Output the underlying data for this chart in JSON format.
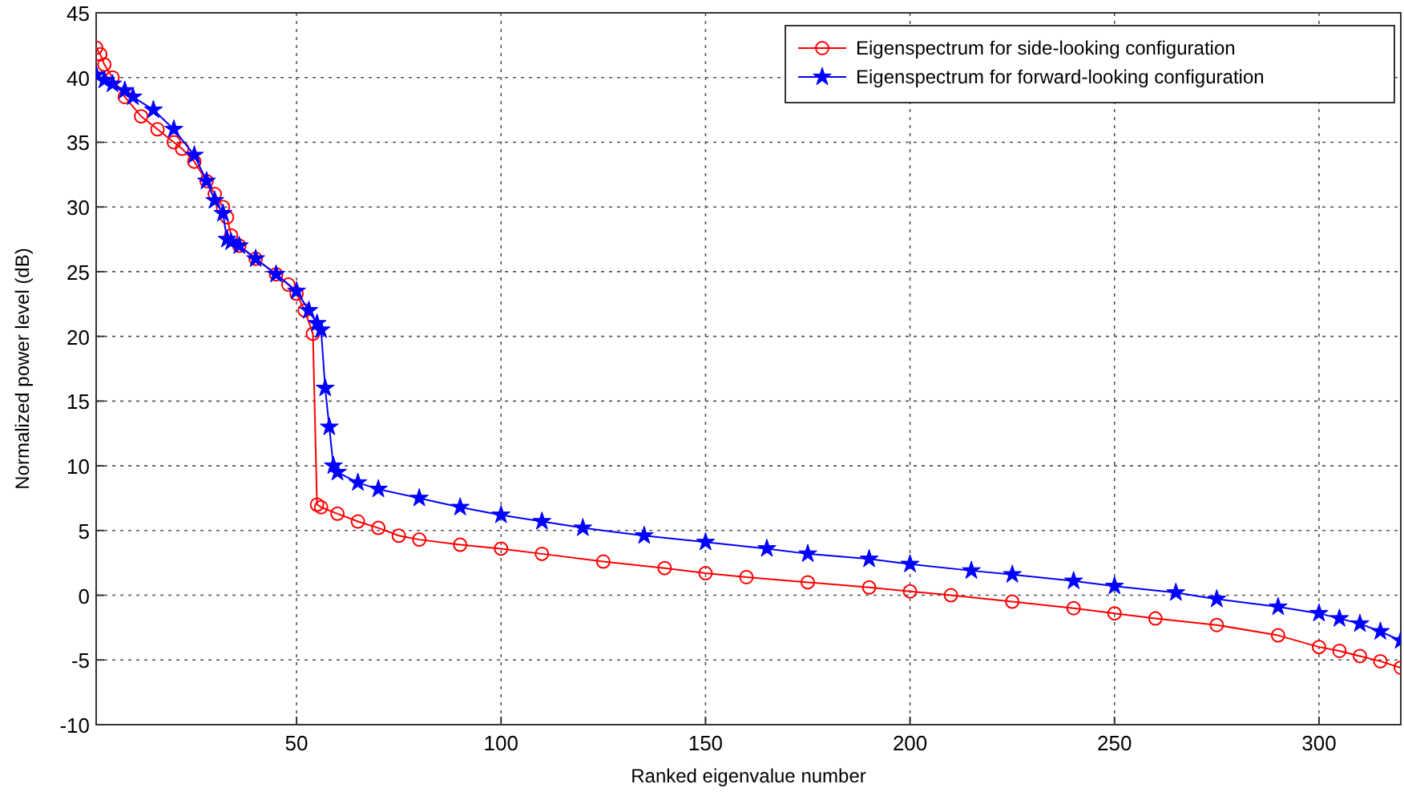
{
  "chart_data": {
    "type": "line",
    "xlabel": "Ranked eigenvalue number",
    "ylabel": "Normalized power level (dB)",
    "xlim": [
      1,
      320
    ],
    "ylim": [
      -10,
      45
    ],
    "xticks": [
      50,
      100,
      150,
      200,
      250,
      300
    ],
    "yticks": [
      -10,
      -5,
      0,
      5,
      10,
      15,
      20,
      25,
      30,
      35,
      40,
      45
    ],
    "grid": true,
    "legend": "top right",
    "line_style": "solid",
    "series": [
      {
        "name": "Eigenspectrum for side-looking configuration",
        "color": "#ff0000",
        "marker": "circle",
        "x": [
          1,
          2,
          3,
          5,
          8,
          12,
          16,
          20,
          22,
          25,
          28,
          30,
          32,
          33,
          34,
          36,
          40,
          45,
          48,
          50,
          52,
          54,
          55,
          56,
          60,
          65,
          70,
          75,
          80,
          90,
          100,
          110,
          125,
          140,
          150,
          160,
          175,
          190,
          200,
          210,
          225,
          240,
          250,
          260,
          275,
          290,
          300,
          305,
          310,
          315,
          320
        ],
        "values": [
          42.3,
          41.8,
          41,
          40,
          38.5,
          37,
          36,
          35,
          34.5,
          33.5,
          32,
          31,
          30,
          29.2,
          27.8,
          27,
          26,
          24.8,
          24,
          23.3,
          22,
          20.2,
          7,
          6.8,
          6.3,
          5.7,
          5.2,
          4.6,
          4.3,
          3.9,
          3.6,
          3.2,
          2.6,
          2.1,
          1.7,
          1.4,
          1,
          0.6,
          0.3,
          0,
          -0.5,
          -1,
          -1.4,
          -1.8,
          -2.3,
          -3.1,
          -4,
          -4.3,
          -4.7,
          -5.1,
          -5.6
        ]
      },
      {
        "name": "Eigenspectrum for forward-looking configuration",
        "color": "#0000ff",
        "marker": "star",
        "x": [
          1,
          3,
          5,
          8,
          10,
          15,
          20,
          25,
          28,
          30,
          32,
          33,
          34,
          36,
          40,
          45,
          50,
          53,
          55,
          56,
          57,
          58,
          59,
          60,
          65,
          70,
          80,
          90,
          100,
          110,
          120,
          135,
          150,
          165,
          175,
          190,
          200,
          215,
          225,
          240,
          250,
          265,
          275,
          290,
          300,
          305,
          310,
          315,
          320
        ],
        "values": [
          40.2,
          39.8,
          39.5,
          39,
          38.5,
          37.5,
          36,
          34,
          32,
          30.5,
          29.5,
          27.5,
          27.3,
          27,
          26,
          24.8,
          23.5,
          22,
          21,
          20.5,
          16,
          13,
          10,
          9.5,
          8.7,
          8.2,
          7.5,
          6.8,
          6.2,
          5.7,
          5.2,
          4.6,
          4.1,
          3.6,
          3.2,
          2.8,
          2.4,
          1.9,
          1.6,
          1.1,
          0.7,
          0.2,
          -0.3,
          -0.9,
          -1.4,
          -1.8,
          -2.2,
          -2.8,
          -3.5
        ]
      }
    ]
  }
}
